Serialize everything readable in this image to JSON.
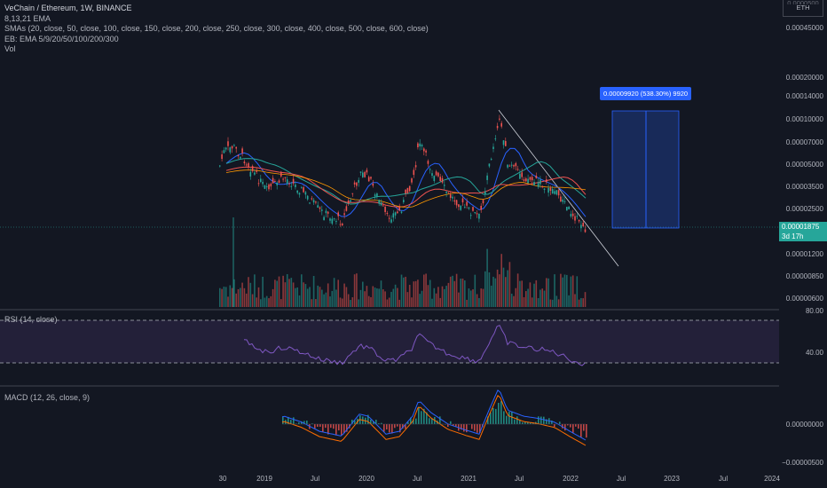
{
  "price_pane": {
    "title": "VeChain / Ethereum, 1W, BINANCE",
    "indicators": [
      "8,13,21 EMA",
      "SMAs (20, close, 50, close, 100, close, 150, close, 200, close, 250, close, 300, close, 400, close, 500, close, 600, close)",
      "EB: EMA 5/9/20/50/100/200/300",
      "Vol"
    ]
  },
  "rsi_pane": {
    "label": "RSI (14, close)",
    "ticks": [
      "80.00",
      "40.00"
    ]
  },
  "macd_pane": {
    "label": "MACD (12, 26, close, 9)",
    "ticks": [
      "0.00000000",
      "−0.00000500"
    ]
  },
  "price_axis": {
    "currency": "ETH",
    "ticks": [
      "0.00045000",
      "0.00020000",
      "0.00014000",
      "0.00010000",
      "0.00007000",
      "0.00005000",
      "0.00003500",
      "0.00002500",
      "0.00001200",
      "0.00000850",
      "0.00000600"
    ],
    "current_price": "0.00001875",
    "countdown": "3d 17h"
  },
  "measure_tool": {
    "label": "0.00009920 (538.30%) 9920"
  },
  "time_axis": {
    "labels": [
      "30",
      "2019",
      "Jul",
      "2020",
      "Jul",
      "2021",
      "Jul",
      "2022",
      "Jul",
      "2023",
      "Jul",
      "2024"
    ]
  },
  "colors": {
    "up": "#26a69a",
    "down": "#ef5350",
    "rsi": "#7e57c2",
    "macd": "#2962ff",
    "signal": "#ff6d00",
    "background": "#131722"
  }
}
